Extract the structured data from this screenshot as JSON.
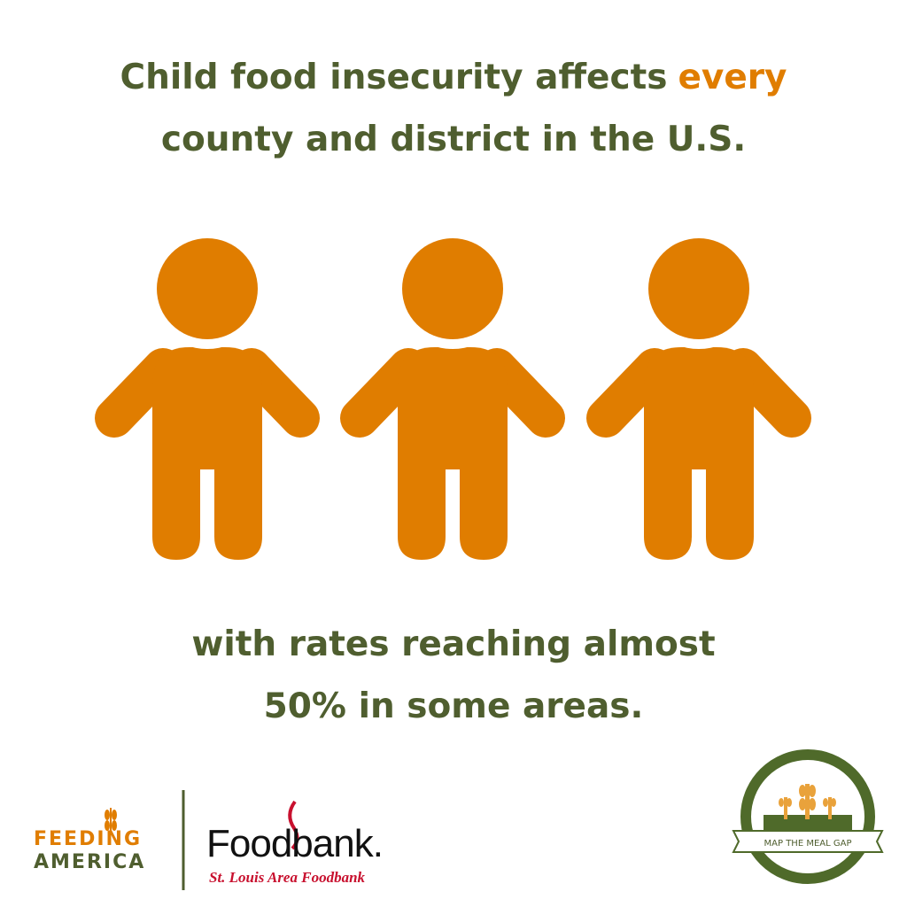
{
  "headline": {
    "line1": "Child food insecurity affects",
    "highlight": "every",
    "line2": "county and district in the U.S."
  },
  "subtext": {
    "line1": "with rates reaching almost",
    "line2": "50% in some areas."
  },
  "logos": {
    "feeding_top": "FEEDING",
    "feeding_bottom": "AMERICA",
    "foodbank": "Foodbank.",
    "foodbank_sub": "St. Louis Area Foodbank",
    "map_meal_gap": "MAP THE MEAL GAP"
  }
}
